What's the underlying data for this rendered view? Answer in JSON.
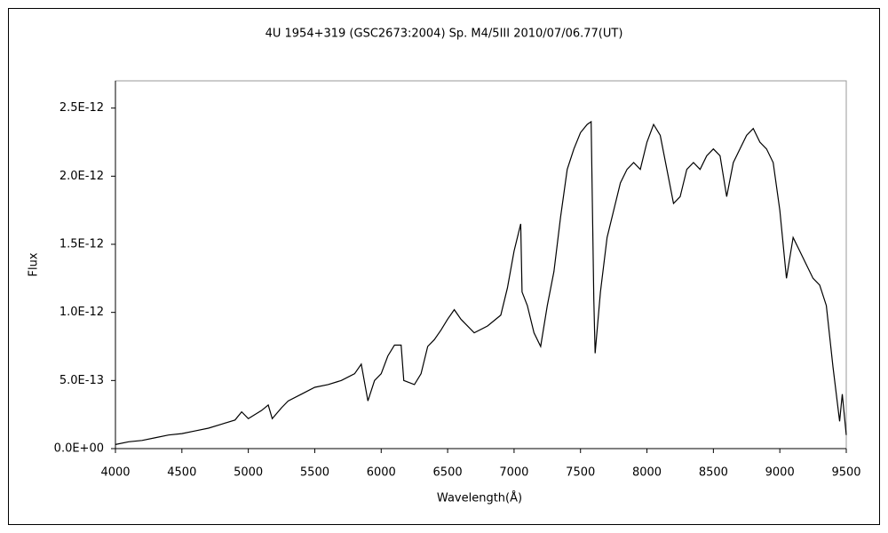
{
  "chart_data": {
    "type": "line",
    "title": "4U 1954+319 (GSC2673:2004)    Sp. M4/5III    2010/07/06.77(UT)",
    "x_label": "Wavelength(Å)",
    "y_label": "Flux",
    "xlim": [
      4000,
      9500
    ],
    "xticks": [
      4000,
      4500,
      5000,
      5500,
      6000,
      6500,
      7000,
      7500,
      8000,
      8500,
      9000,
      9500
    ],
    "ylim": [
      0,
      2.7e-12
    ],
    "yticks": [
      {
        "value": 0,
        "label": "0.0E+00"
      },
      {
        "value": 5e-13,
        "label": "5.0E-13"
      },
      {
        "value": 1e-12,
        "label": "1.0E-12"
      },
      {
        "value": 1.5e-12,
        "label": "1.5E-12"
      },
      {
        "value": 2e-12,
        "label": "2.0E-12"
      },
      {
        "value": 2.5e-12,
        "label": "2.5E-12"
      }
    ],
    "grid": false,
    "series": [
      {
        "name": "Flux",
        "color": "#000000",
        "x": [
          4000,
          4100,
          4200,
          4300,
          4400,
          4500,
          4600,
          4700,
          4800,
          4900,
          4950,
          5000,
          5100,
          5150,
          5180,
          5250,
          5300,
          5400,
          5500,
          5600,
          5700,
          5800,
          5850,
          5900,
          5950,
          6000,
          6050,
          6100,
          6150,
          6170,
          6250,
          6300,
          6350,
          6400,
          6450,
          6500,
          6550,
          6600,
          6700,
          6800,
          6900,
          6950,
          7000,
          7050,
          7060,
          7100,
          7150,
          7200,
          7250,
          7300,
          7350,
          7400,
          7450,
          7500,
          7550,
          7580,
          7600,
          7610,
          7650,
          7700,
          7750,
          7800,
          7850,
          7900,
          7950,
          8000,
          8050,
          8100,
          8150,
          8200,
          8250,
          8300,
          8350,
          8400,
          8450,
          8500,
          8550,
          8600,
          8650,
          8700,
          8750,
          8800,
          8850,
          8900,
          8950,
          9000,
          9050,
          9100,
          9150,
          9200,
          9250,
          9300,
          9350,
          9400,
          9450,
          9470,
          9500
        ],
        "values": [
          3e-14,
          5e-14,
          6e-14,
          8e-14,
          1e-13,
          1.1e-13,
          1.3e-13,
          1.5e-13,
          1.8e-13,
          2.1e-13,
          2.7e-13,
          2.2e-13,
          2.8e-13,
          3.2e-13,
          2.2e-13,
          3e-13,
          3.5e-13,
          4e-13,
          4.5e-13,
          4.7e-13,
          5e-13,
          5.5e-13,
          6.2e-13,
          3.5e-13,
          5e-13,
          5.5e-13,
          6.8e-13,
          7.6e-13,
          7.6e-13,
          5e-13,
          4.7e-13,
          5.5e-13,
          7.5e-13,
          8e-13,
          8.7e-13,
          9.5e-13,
          1.02e-12,
          9.5e-13,
          8.5e-13,
          9e-13,
          9.8e-13,
          1.18e-12,
          1.45e-12,
          1.65e-12,
          1.15e-12,
          1.05e-12,
          8.5e-13,
          7.5e-13,
          1.05e-12,
          1.3e-12,
          1.7e-12,
          2.05e-12,
          2.2e-12,
          2.32e-12,
          2.38e-12,
          2.4e-12,
          1.1e-12,
          7e-13,
          1.15e-12,
          1.55e-12,
          1.75e-12,
          1.95e-12,
          2.05e-12,
          2.1e-12,
          2.05e-12,
          2.25e-12,
          2.38e-12,
          2.3e-12,
          2.05e-12,
          1.8e-12,
          1.85e-12,
          2.05e-12,
          2.1e-12,
          2.05e-12,
          2.15e-12,
          2.2e-12,
          2.15e-12,
          1.85e-12,
          2.1e-12,
          2.2e-12,
          2.3e-12,
          2.35e-12,
          2.25e-12,
          2.2e-12,
          2.1e-12,
          1.75e-12,
          1.25e-12,
          1.55e-12,
          1.45e-12,
          1.35e-12,
          1.25e-12,
          1.2e-12,
          1.05e-12,
          6e-13,
          2e-13,
          4e-13,
          1e-13
        ]
      }
    ]
  }
}
